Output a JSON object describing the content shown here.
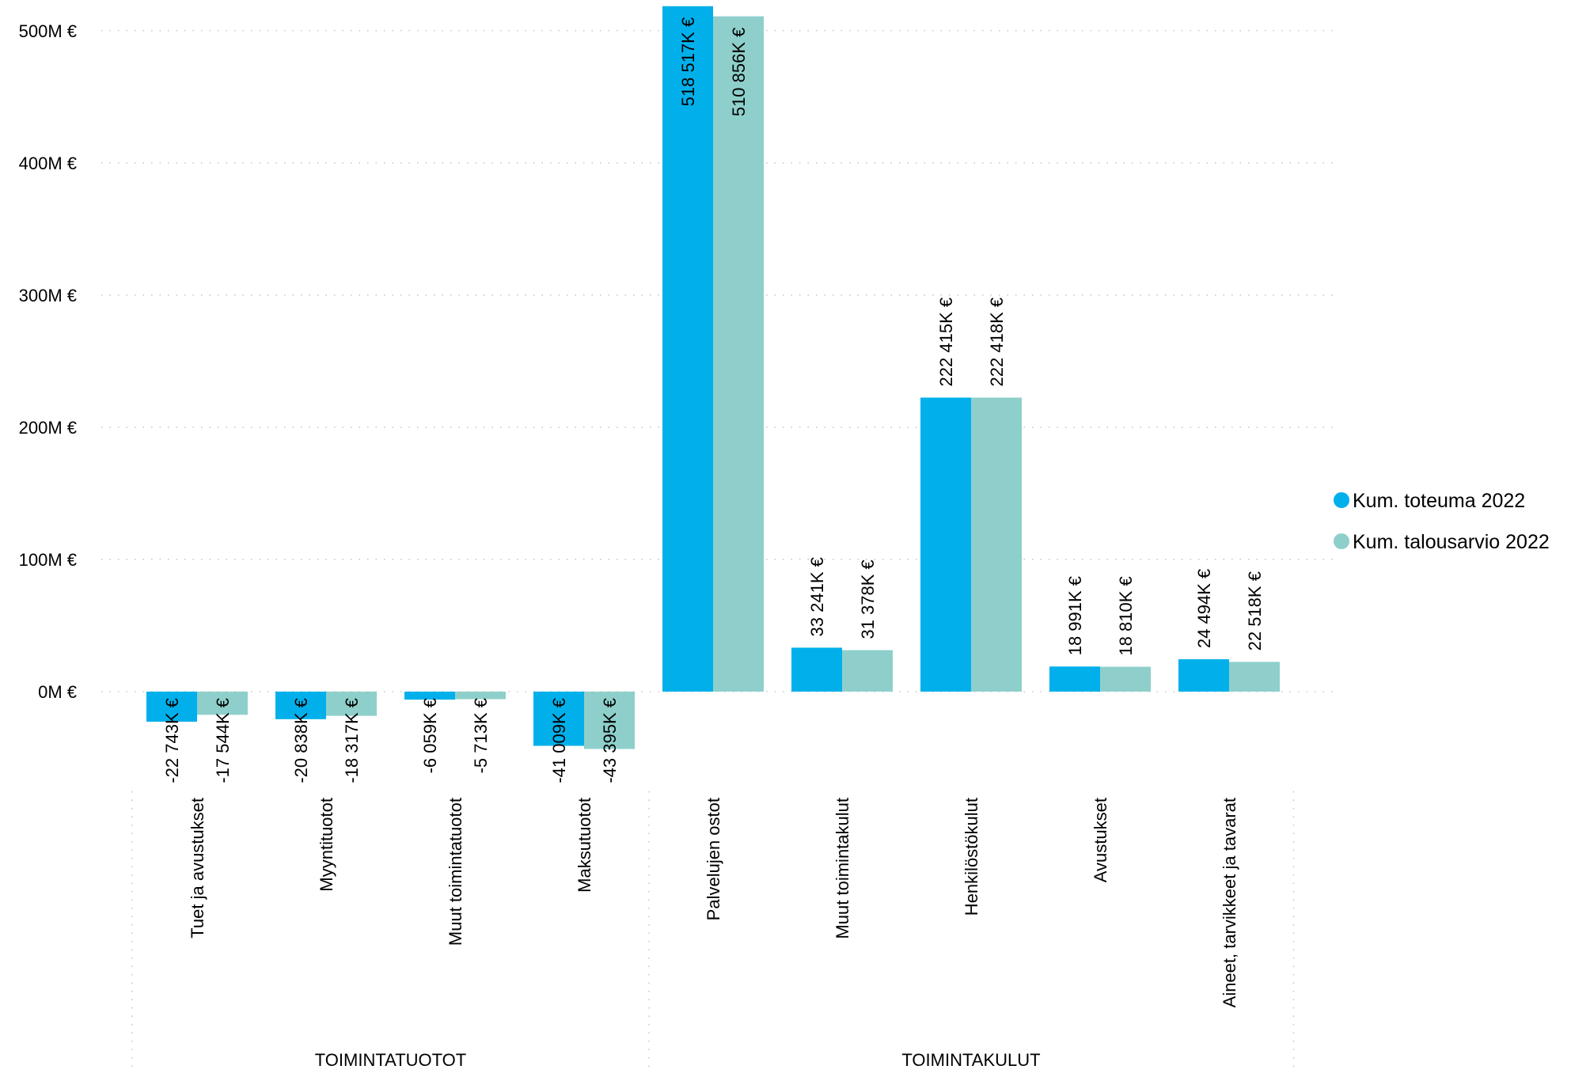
{
  "chart_data": {
    "type": "bar",
    "y_axis": {
      "ticks": [
        0,
        100,
        200,
        300,
        400,
        500
      ],
      "tick_labels": [
        "0M €",
        "100M €",
        "200M €",
        "300M €",
        "400M €",
        "500M €"
      ],
      "ylim": [
        -60,
        520
      ],
      "unit": "M €",
      "grid": true
    },
    "groups": [
      {
        "label": "TOIMINTATUOTOT",
        "categories": [
          "Tuet ja avustukset",
          "Myyntituotot",
          "Muut toimintatuotot",
          "Maksutuotot"
        ]
      },
      {
        "label": "TOIMINTAKULUT",
        "categories": [
          "Palvelujen ostot",
          "Muut toimintakulut",
          "Henkilöstökulut",
          "Avustukset",
          "Aineet, tarvikkeet ja tavarat"
        ]
      }
    ],
    "categories": [
      "Tuet ja avustukset",
      "Myyntituotot",
      "Muut toimintatuotot",
      "Maksutuotot",
      "Palvelujen ostot",
      "Muut toimintakulut",
      "Henkilöstökulut",
      "Avustukset",
      "Aineet, tarvikkeet ja tavarat"
    ],
    "series": [
      {
        "name": "Kum. toteuma 2022",
        "color": "#01B0EB",
        "values": [
          -22.743,
          -20.838,
          -6.059,
          -41.009,
          518.517,
          33.241,
          222.415,
          18.991,
          24.494
        ],
        "labels": [
          "-22 743K €",
          "-20 838K €",
          "-6 059K €",
          "-41 009K €",
          "518 517K €",
          "33 241K €",
          "222 415K €",
          "18 991K €",
          "24 494K €"
        ]
      },
      {
        "name": "Kum. talousarvio 2022",
        "color": "#8ECFCB",
        "values": [
          -17.544,
          -18.317,
          -5.713,
          -43.395,
          510.856,
          31.378,
          222.418,
          18.81,
          22.518
        ],
        "labels": [
          "-17 544K €",
          "-18 317K €",
          "-5 713K €",
          "-43 395K €",
          "510 856K €",
          "31 378K €",
          "222 418K €",
          "18 810K €",
          "22 518K €"
        ]
      }
    ],
    "legend": {
      "position": "right"
    }
  }
}
